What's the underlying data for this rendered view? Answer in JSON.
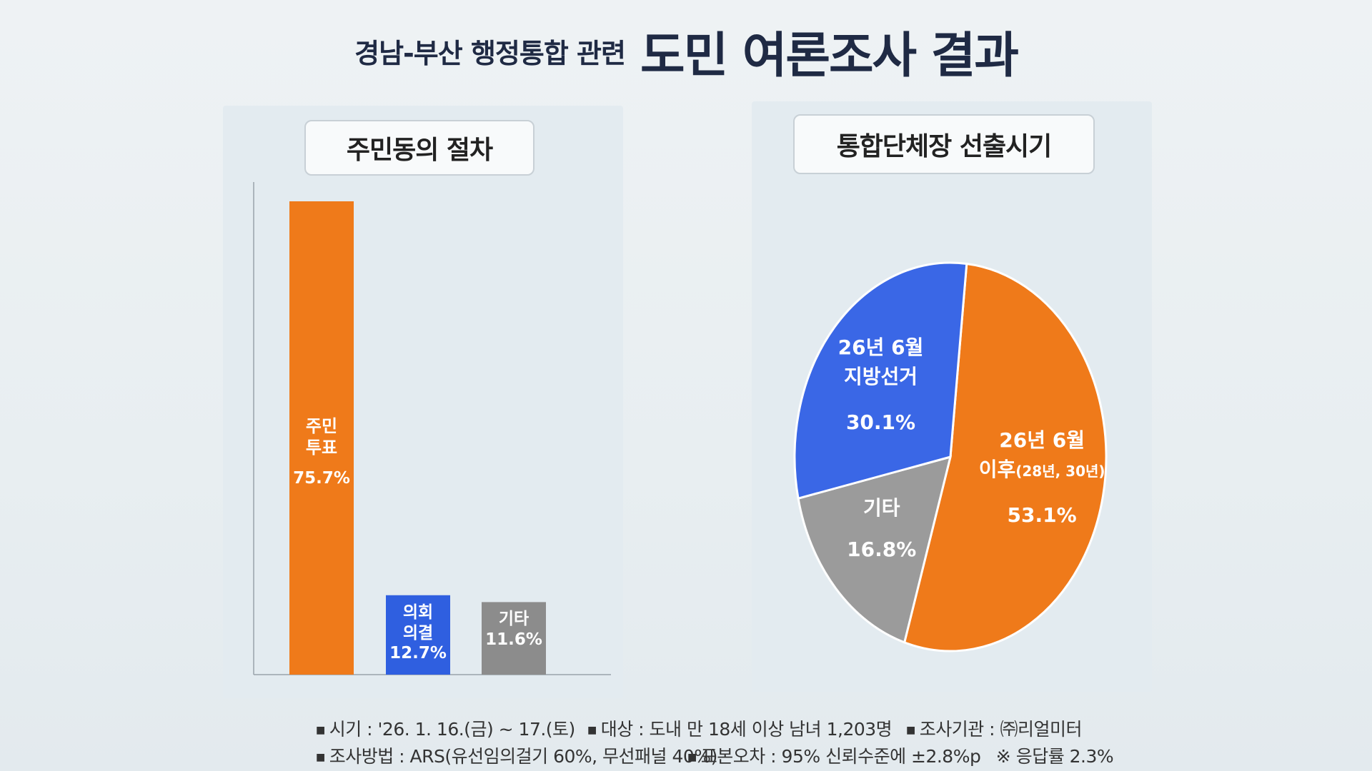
{
  "header": {
    "subtitle": "경남-부산 행정통합 관련",
    "title": "도민 여론조사 결과"
  },
  "chart_data": [
    {
      "type": "bar",
      "title": "주민동의 절차",
      "categories": [
        "주민투표",
        "의회의결",
        "기타"
      ],
      "values": [
        75.7,
        12.7,
        11.6
      ],
      "colors": [
        "#ef7a1a",
        "#2f5fe0",
        "#8c8c8c"
      ],
      "labels": [
        {
          "line1": "주민",
          "line2": "투표",
          "value": "75.7%"
        },
        {
          "line1": "의회",
          "line2": "의결",
          "value": "12.7%"
        },
        {
          "line1": "기타",
          "line2": "",
          "value": "11.6%"
        }
      ],
      "ylim": [
        0,
        75.7
      ],
      "grid": false
    },
    {
      "type": "pie",
      "title": "통합단체장 선출시기",
      "slices": [
        {
          "name": "26년 6월 이후(28년, 30년)",
          "value": 53.1,
          "color": "#ef7a1a",
          "line1": "26년 6월",
          "line2a": "이후",
          "line2b": "(28년, 30년)",
          "label": "53.1%"
        },
        {
          "name": "기타",
          "value": 16.8,
          "color": "#9b9b9b",
          "line1": "기타",
          "label": "16.8%"
        },
        {
          "name": "26년 6월 지방선거",
          "value": 30.1,
          "color": "#3a67e6",
          "line1": "26년 6월",
          "line2": "지방선거",
          "label": "30.1%"
        }
      ]
    }
  ],
  "footer": {
    "period": "시기 : '26. 1. 16.(금) ~ 17.(토)",
    "target": "대상 : 도내 만 18세 이상 남녀 1,203명",
    "agency": "조사기관 : ㈜리얼미터",
    "method": "조사방법 : ARS(유선임의걸기 60%, 무선패널 40%)",
    "error": "표본오차 : 95% 신뢰수준에 ±2.8%p",
    "response": "※ 응답률 2.3%",
    "bullet": "■"
  }
}
